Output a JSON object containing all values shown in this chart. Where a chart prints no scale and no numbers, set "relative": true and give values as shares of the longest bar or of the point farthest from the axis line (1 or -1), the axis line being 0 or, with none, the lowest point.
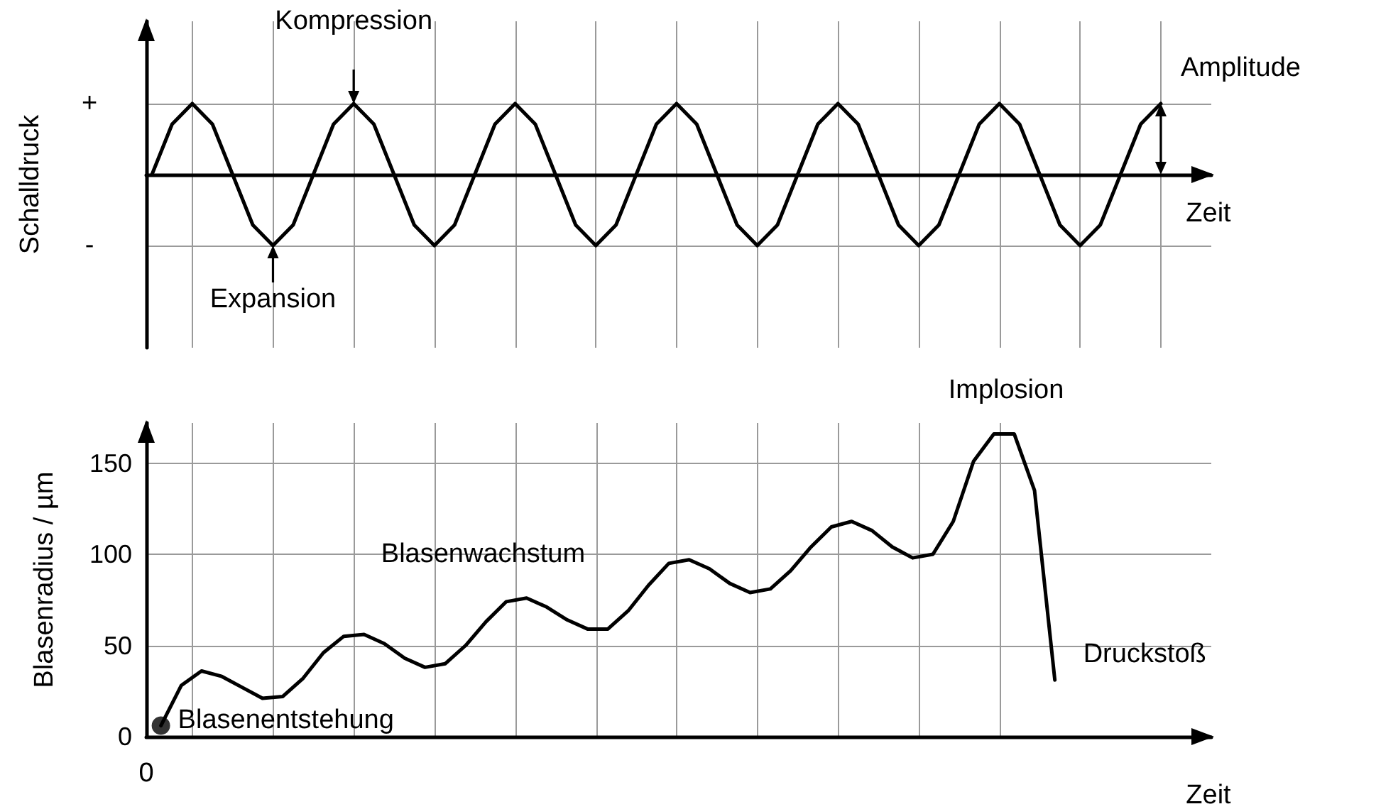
{
  "chart_data": [
    {
      "type": "line",
      "ylabel": "Schalldruck",
      "xlabel": "Zeit",
      "relative": true,
      "categories": [
        null,
        null,
        null,
        null,
        null,
        null,
        null,
        null,
        null,
        null,
        null,
        null,
        null,
        null,
        null,
        null,
        null,
        null,
        null,
        null,
        null,
        null,
        null,
        null,
        null,
        null,
        null,
        null,
        null,
        null,
        null,
        null,
        null,
        null,
        null,
        null,
        null,
        null,
        null,
        null,
        null,
        null,
        null,
        null,
        null,
        null,
        null,
        null,
        null,
        null,
        null
      ],
      "grid": true,
      "marker": "none",
      "line_style": "solid",
      "series": [
        {
          "color": "#000000",
          "values": [
            0,
            0.71,
            1,
            0.71,
            0,
            -0.71,
            -1,
            -0.71,
            0,
            0.71,
            1,
            0.71,
            0,
            -0.71,
            -1,
            -0.71,
            0,
            0.71,
            1,
            0.71,
            0,
            -0.71,
            -1,
            -0.71,
            0,
            0.71,
            1,
            0.71,
            0,
            -0.71,
            -1,
            -0.71,
            0,
            0.71,
            1,
            0.71,
            0,
            -0.71,
            -1,
            -0.71,
            0,
            0.71,
            1,
            0.71,
            0,
            -0.71,
            -1,
            -0.71,
            0,
            0.71,
            1
          ]
        }
      ],
      "annotations": [
        "+",
        "-",
        "Kompression",
        "Expansion",
        "Amplitude"
      ]
    },
    {
      "type": "line",
      "ylabel": "Blasenradius / µm",
      "xlabel": "Zeit",
      "categories": [
        null,
        null,
        null,
        null,
        null,
        null,
        null,
        null,
        null,
        null,
        null,
        null,
        null,
        null,
        null,
        null,
        null,
        null,
        null,
        null,
        null,
        null,
        null,
        null,
        null,
        null,
        null,
        null,
        null,
        null,
        null,
        null,
        null,
        null,
        null,
        null,
        null,
        null,
        null,
        null,
        null,
        null,
        null,
        null,
        null
      ],
      "ylim": [
        0,
        172
      ],
      "yticks": [
        0,
        50,
        100,
        150
      ],
      "grid": true,
      "marker": "none",
      "line_style": "solid",
      "series": [
        {
          "color": "#000000",
          "values": [
            6,
            28,
            36,
            33,
            27,
            21,
            22,
            32,
            46,
            55,
            56,
            51,
            43,
            38,
            40,
            50,
            63,
            74,
            76,
            71,
            64,
            59,
            59,
            69,
            83,
            95,
            97,
            92,
            84,
            79,
            81,
            91,
            104,
            115,
            118,
            113,
            104,
            98,
            100,
            118,
            151,
            166,
            166,
            135,
            31
          ]
        },
        {
          "type": "scatter",
          "marker": "circle",
          "color": "#000000",
          "values": [
            6,
            null,
            null,
            null,
            null,
            null,
            null,
            null,
            null,
            null,
            null,
            null,
            null,
            null,
            null,
            null,
            null,
            null,
            null,
            null,
            null,
            null,
            null,
            null,
            null,
            null,
            null,
            null,
            null,
            null,
            null,
            null,
            null,
            null,
            null,
            null,
            null,
            null,
            null,
            null,
            null,
            null,
            null,
            null,
            null
          ]
        }
      ],
      "annotations": [
        "0",
        "Blasenentstehung",
        "Blasenwachstum",
        "Implosion",
        "Druckstoß"
      ]
    }
  ]
}
